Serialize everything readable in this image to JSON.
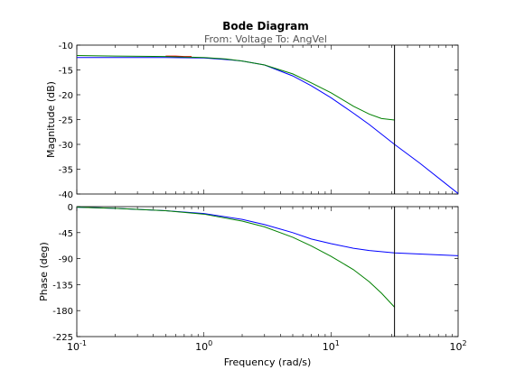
{
  "chart_data": {
    "type": "line",
    "title": "Bode Diagram",
    "subtitle": "From: Voltage  To: AngVel",
    "xlabel": "Frequency  (rad/s)",
    "x_scale": "log",
    "x_ticks": [
      {
        "value": 0.1,
        "base": "10",
        "exp": "-1"
      },
      {
        "value": 1,
        "base": "10",
        "exp": "0"
      },
      {
        "value": 10,
        "base": "10",
        "exp": "1"
      },
      {
        "value": 100,
        "base": "10",
        "exp": "2"
      }
    ],
    "xlim": [
      0.1,
      100
    ],
    "marker_frequency": 31.6,
    "grid": false,
    "legend": "none",
    "panels": [
      {
        "ylabel": "Magnitude (dB)",
        "ylim": [
          -40,
          -10
        ],
        "yticks": [
          -10,
          -15,
          -20,
          -25,
          -30,
          -35,
          -40
        ],
        "series": [
          {
            "color": "#0000ff",
            "x": [
              0.1,
              0.2,
              0.5,
              1,
              1.5,
              2,
              3,
              5,
              7,
              10,
              15,
              20,
              31.6,
              50,
              100
            ],
            "y": [
              -12.5,
              -12.5,
              -12.5,
              -12.6,
              -12.9,
              -13.2,
              -14.0,
              -16.2,
              -18.2,
              -20.6,
              -23.7,
              -26.0,
              -30.0,
              -33.8,
              -39.9
            ]
          },
          {
            "color": "#ff0000",
            "x": [
              0.5,
              0.6,
              0.7,
              0.8
            ],
            "y": [
              -12.2,
              -12.2,
              -12.3,
              -12.3
            ]
          },
          {
            "color": "#008000",
            "x": [
              0.1,
              0.2,
              0.5,
              1,
              1.5,
              2,
              3,
              5,
              7,
              10,
              15,
              20,
              25,
              31.6
            ],
            "y": [
              -12.1,
              -12.2,
              -12.3,
              -12.5,
              -12.8,
              -13.2,
              -14.0,
              -15.8,
              -17.6,
              -19.6,
              -22.3,
              -23.9,
              -24.8,
              -25.1
            ]
          }
        ]
      },
      {
        "ylabel": "Phase (deg)",
        "ylim": [
          -225,
          0
        ],
        "yticks": [
          0,
          -45,
          -90,
          -135,
          -180,
          -225
        ],
        "series": [
          {
            "color": "#0000ff",
            "x": [
              0.1,
              0.2,
              0.5,
              1,
              2,
              3,
              5,
              7,
              10,
              15,
              20,
              31.6,
              50,
              100
            ],
            "y": [
              -1,
              -3,
              -7,
              -12,
              -22,
              -31,
              -45,
              -56,
              -64,
              -72,
              -76,
              -80,
              -82,
              -85
            ]
          },
          {
            "color": "#008000",
            "x": [
              0.1,
              0.2,
              0.5,
              1,
              2,
              3,
              5,
              7,
              10,
              15,
              20,
              25,
              31.6
            ],
            "y": [
              -1,
              -3,
              -7,
              -13,
              -25,
              -35,
              -53,
              -68,
              -86,
              -109,
              -130,
              -150,
              -174
            ]
          }
        ]
      }
    ]
  }
}
